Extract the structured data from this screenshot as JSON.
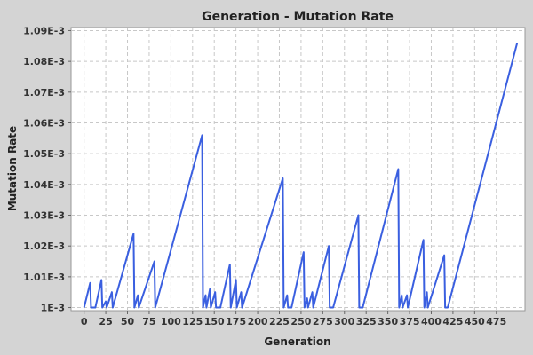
{
  "chart_data": {
    "type": "line",
    "title": "Generation - Mutation Rate",
    "xlabel": "Generation",
    "ylabel": "Mutation Rate",
    "xlim": [
      -15,
      508
    ],
    "ylim": [
      0.000999,
      0.001091
    ],
    "x_ticks": [
      0,
      25,
      50,
      75,
      100,
      125,
      150,
      175,
      200,
      225,
      250,
      275,
      300,
      325,
      350,
      375,
      400,
      425,
      450,
      475
    ],
    "x_tick_labels": [
      "0",
      "25",
      "50",
      "75",
      "100",
      "125",
      "150",
      "175",
      "200",
      "225",
      "250",
      "275",
      "300",
      "325",
      "350",
      "375",
      "400",
      "425",
      "450",
      "475"
    ],
    "y_ticks": [
      0.001,
      0.00101,
      0.00102,
      0.00103,
      0.00104,
      0.00105,
      0.00106,
      0.00107,
      0.00108,
      0.00109
    ],
    "y_tick_labels": [
      "1E-3",
      "1.01E-3",
      "1.02E-3",
      "1.03E-3",
      "1.04E-3",
      "1.05E-3",
      "1.06E-3",
      "1.07E-3",
      "1.08E-3",
      "1.09E-3"
    ],
    "grid": true,
    "legend": "none",
    "series": [
      {
        "color": "#3a5fe0",
        "points": [
          [
            0,
            0.001
          ],
          [
            7,
            0.001008
          ],
          [
            8,
            0.001
          ],
          [
            13,
            0.001
          ],
          [
            20,
            0.001009
          ],
          [
            21,
            0.001
          ],
          [
            25,
            0.001002
          ],
          [
            26,
            0.001
          ],
          [
            32,
            0.001005
          ],
          [
            33,
            0.001
          ],
          [
            57,
            0.001024
          ],
          [
            58,
            0.001
          ],
          [
            62,
            0.001004
          ],
          [
            63,
            0.001
          ],
          [
            81,
            0.001015
          ],
          [
            82,
            0.001
          ],
          [
            136,
            0.001056
          ],
          [
            137,
            0.001
          ],
          [
            140,
            0.001004
          ],
          [
            141,
            0.001
          ],
          [
            145,
            0.001006
          ],
          [
            146,
            0.001
          ],
          [
            151,
            0.001005
          ],
          [
            152,
            0.001
          ],
          [
            157,
            0.001
          ],
          [
            168,
            0.001014
          ],
          [
            169,
            0.001
          ],
          [
            175,
            0.001009
          ],
          [
            176,
            0.001
          ],
          [
            181,
            0.001005
          ],
          [
            182,
            0.001
          ],
          [
            229,
            0.001042
          ],
          [
            230,
            0.001
          ],
          [
            234,
            0.001004
          ],
          [
            235,
            0.001
          ],
          [
            239,
            0.001
          ],
          [
            253,
            0.001018
          ],
          [
            254,
            0.001
          ],
          [
            257,
            0.001003
          ],
          [
            258,
            0.001
          ],
          [
            263,
            0.001005
          ],
          [
            264,
            0.001
          ],
          [
            282,
            0.00102
          ],
          [
            283,
            0.001
          ],
          [
            287,
            0.001
          ],
          [
            316,
            0.00103
          ],
          [
            317,
            0.001
          ],
          [
            321,
            0.001
          ],
          [
            362,
            0.001045
          ],
          [
            363,
            0.001
          ],
          [
            366,
            0.001004
          ],
          [
            367,
            0.001
          ],
          [
            372,
            0.001004
          ],
          [
            373,
            0.001
          ],
          [
            391,
            0.001022
          ],
          [
            392,
            0.001
          ],
          [
            395,
            0.001005
          ],
          [
            396,
            0.001
          ],
          [
            415,
            0.001017
          ],
          [
            416,
            0.001
          ],
          [
            419,
            0.001
          ],
          [
            499,
            0.001086
          ]
        ]
      }
    ]
  }
}
